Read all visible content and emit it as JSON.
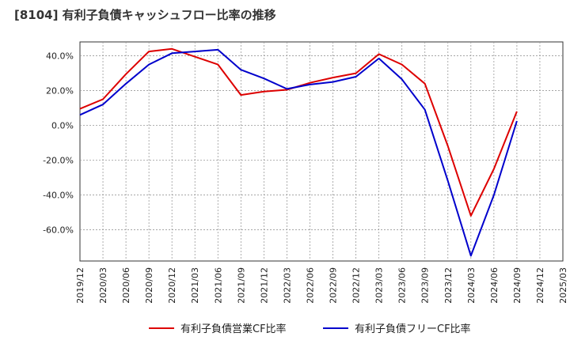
{
  "title": "[8104]  有利子負債キャッシュフロー比率の推移",
  "chart_data": {
    "type": "line",
    "title": "[8104]  有利子負債キャッシュフロー比率の推移",
    "xlabel": "",
    "ylabel": "",
    "categories": [
      "2019/12",
      "2020/03",
      "2020/06",
      "2020/09",
      "2020/12",
      "2021/03",
      "2021/06",
      "2021/09",
      "2021/12",
      "2022/03",
      "2022/06",
      "2022/09",
      "2022/12",
      "2023/03",
      "2023/06",
      "2023/09",
      "2023/12",
      "2024/03",
      "2024/06",
      "2024/09",
      "2024/12",
      "2025/03"
    ],
    "ylim": [
      -78,
      48
    ],
    "yticks": [
      40,
      20,
      0,
      -20,
      -40,
      -60
    ],
    "ytick_labels": [
      "40.0%",
      "20.0%",
      "0.0%",
      "-20.0%",
      "-40.0%",
      "-60.0%"
    ],
    "grid": true,
    "legend_position": "bottom",
    "series": [
      {
        "name": "有利子負債営業CF比率",
        "color": "#dd0000",
        "values": [
          9.5,
          15,
          29.5,
          42.5,
          44,
          39.5,
          35,
          17.5,
          19.5,
          20.5,
          24.5,
          27.5,
          30,
          41,
          35,
          24,
          -12,
          -52,
          -25,
          8,
          null,
          null
        ]
      },
      {
        "name": "有利子負債フリーCF比率",
        "color": "#0000cc",
        "values": [
          6,
          12,
          24,
          35,
          41.5,
          42.5,
          43.5,
          32,
          27,
          21,
          23.5,
          25,
          28,
          38.5,
          26.5,
          9,
          -32,
          -75,
          -40,
          2.5,
          null,
          null
        ]
      }
    ]
  }
}
